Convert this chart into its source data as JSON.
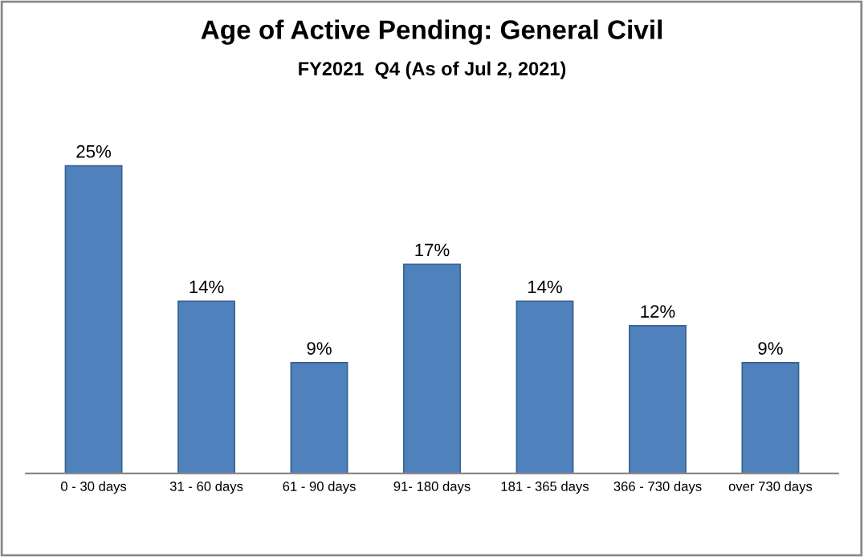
{
  "chart_data": {
    "type": "bar",
    "title": "Age of Active Pending: General Civil",
    "subtitle": "FY2021  Q4 (As of Jul 2, 2021)",
    "categories": [
      "0 - 30 days",
      "31 - 60 days",
      "61 - 90 days",
      "91- 180 days",
      "181 - 365 days",
      "366 - 730 days",
      "over 730 days"
    ],
    "values": [
      25,
      14,
      9,
      17,
      14,
      12,
      9
    ],
    "value_labels": [
      "25%",
      "14%",
      "9%",
      "17%",
      "14%",
      "12%",
      "9%"
    ],
    "color": "#4f81bd",
    "grid": false,
    "legend": false
  }
}
